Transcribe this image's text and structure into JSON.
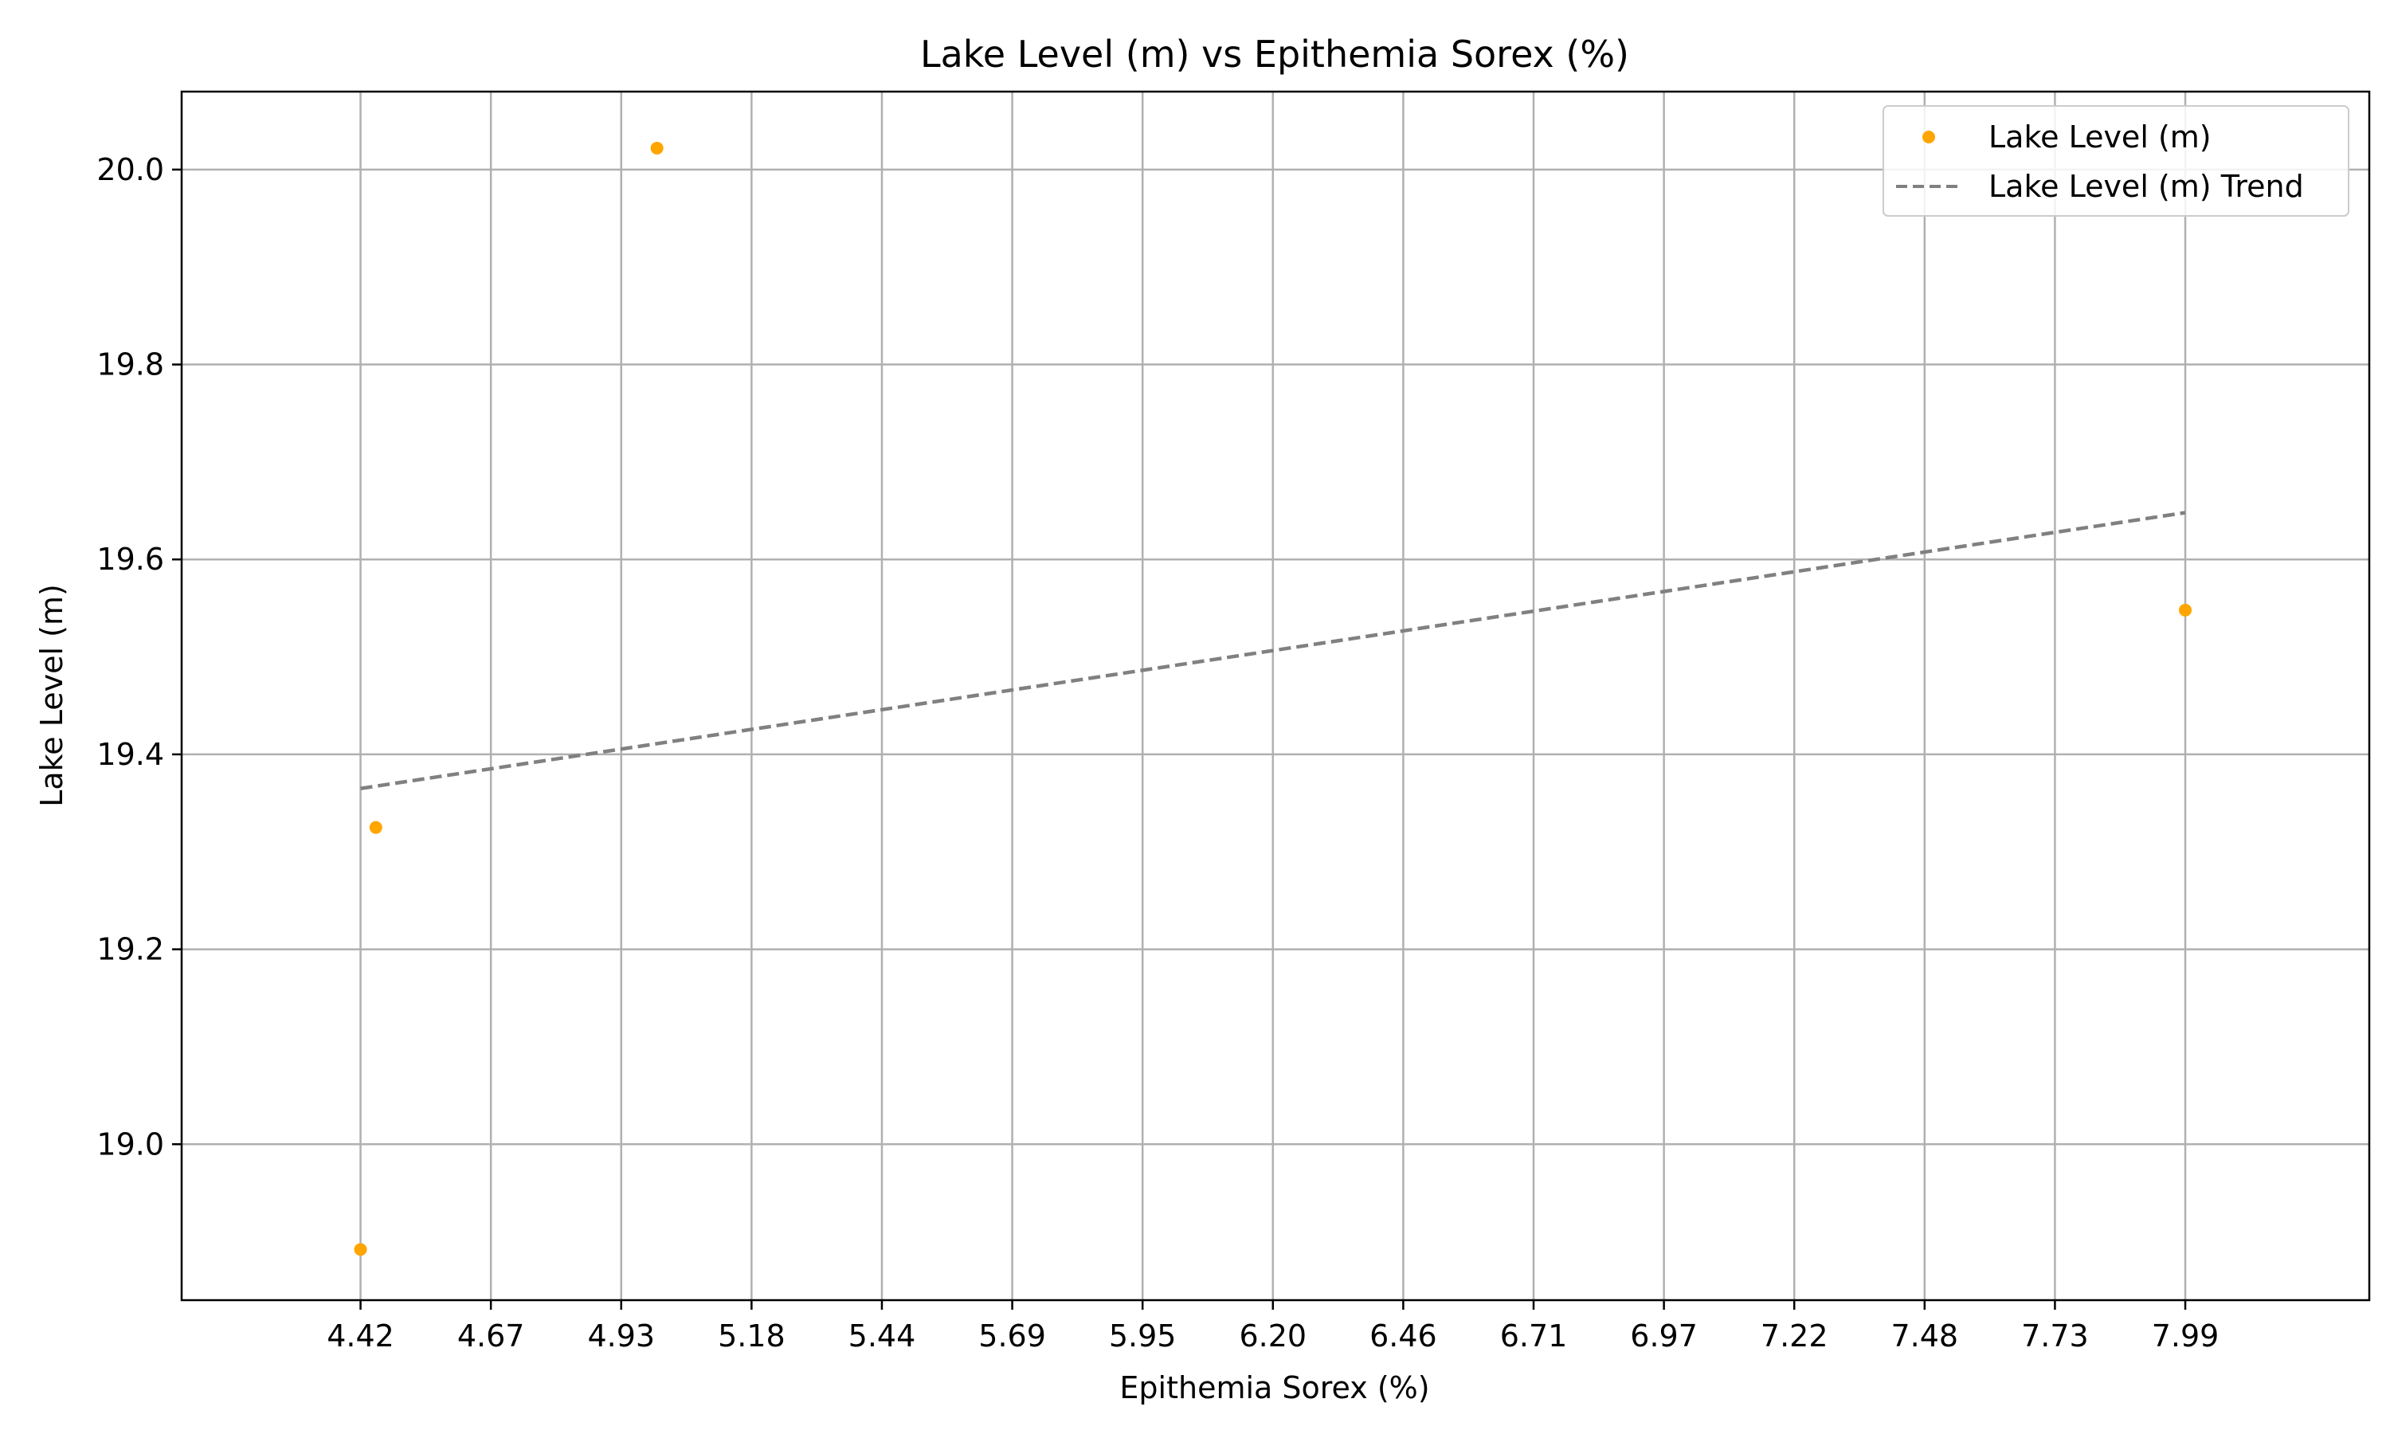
{
  "chart_data": {
    "type": "scatter",
    "title": "Lake Level (m) vs Epithemia Sorex (%)",
    "xlabel": "Epithemia Sorex (%)",
    "ylabel": "Lake Level (m)",
    "xlim": [
      4.07,
      8.35
    ],
    "ylim": [
      18.84,
      20.08
    ],
    "grid": true,
    "legend_position": "top-right",
    "x_tick_labels": [
      "4.42",
      "4.67",
      "4.93",
      "5.18",
      "5.44",
      "5.69",
      "5.95",
      "6.20",
      "6.46",
      "6.71",
      "6.97",
      "7.22",
      "7.48",
      "7.73",
      "7.99"
    ],
    "x_tick_values": [
      4.42,
      4.675,
      4.93,
      5.185,
      5.44,
      5.695,
      5.95,
      6.205,
      6.46,
      6.715,
      6.97,
      7.225,
      7.48,
      7.735,
      7.99
    ],
    "y_tick_labels": [
      "19.0",
      "19.2",
      "19.4",
      "19.6",
      "19.8",
      "20.0"
    ],
    "y_tick_values": [
      19.0,
      19.2,
      19.4,
      19.6,
      19.8,
      20.0
    ],
    "series": [
      {
        "name": "Lake Level (m)",
        "kind": "scatter",
        "color": "#FFA500",
        "points": [
          {
            "x": 4.42,
            "y": 18.892
          },
          {
            "x": 4.45,
            "y": 19.325
          },
          {
            "x": 5.0,
            "y": 20.022
          },
          {
            "x": 7.99,
            "y": 19.548
          }
        ]
      },
      {
        "name": "Lake Level (m) Trend",
        "kind": "line",
        "style": "dashed",
        "color": "#808080",
        "points": [
          {
            "x": 4.42,
            "y": 19.365
          },
          {
            "x": 7.99,
            "y": 19.648
          }
        ]
      }
    ]
  }
}
